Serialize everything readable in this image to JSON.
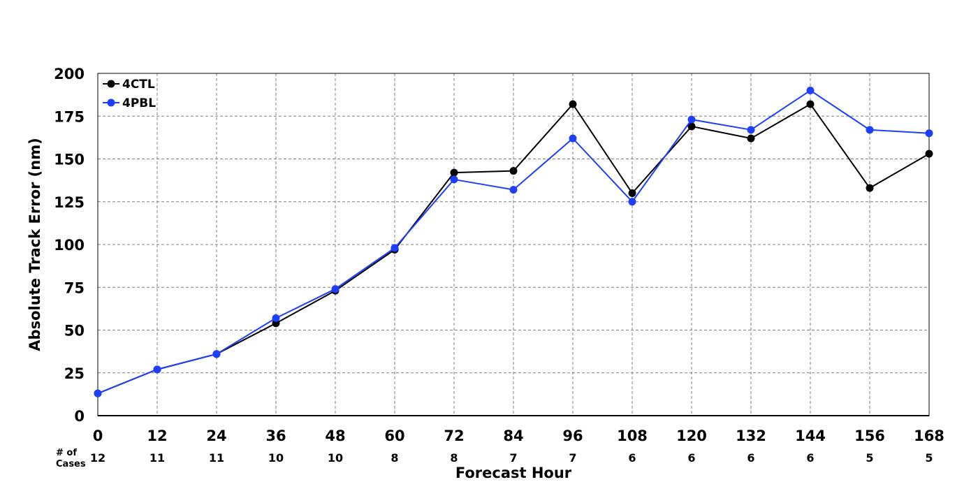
{
  "chart_data": {
    "type": "line",
    "title": "",
    "xlabel": "Forecast Hour",
    "ylabel": "Absolute Track Error (nm)",
    "x": [
      0,
      12,
      24,
      36,
      48,
      60,
      72,
      84,
      96,
      108,
      120,
      132,
      144,
      156,
      168
    ],
    "xlim": [
      0,
      168
    ],
    "ylim": [
      0,
      200
    ],
    "x_ticks": [
      "0",
      "12",
      "24",
      "36",
      "48",
      "60",
      "72",
      "84",
      "96",
      "108",
      "120",
      "132",
      "144",
      "156",
      "168"
    ],
    "y_ticks": [
      "0",
      "25",
      "50",
      "75",
      "100",
      "125",
      "150",
      "175",
      "200"
    ],
    "grid": true,
    "legend_position": "top-left",
    "series": [
      {
        "name": "4CTL",
        "color": "#000000",
        "values": [
          13,
          27,
          36,
          54,
          73,
          97,
          142,
          143,
          182,
          130,
          169,
          162,
          182,
          133,
          153
        ]
      },
      {
        "name": "4PBL",
        "color": "#1f3fff",
        "values": [
          13,
          27,
          36,
          57,
          74,
          98,
          138,
          132,
          162,
          125,
          173,
          167,
          190,
          167,
          165
        ]
      }
    ],
    "cases": {
      "header": [
        "# of",
        "Cases"
      ],
      "values": [
        "12",
        "11",
        "11",
        "10",
        "10",
        "8",
        "8",
        "7",
        "7",
        "6",
        "6",
        "6",
        "6",
        "5",
        "5"
      ]
    }
  }
}
